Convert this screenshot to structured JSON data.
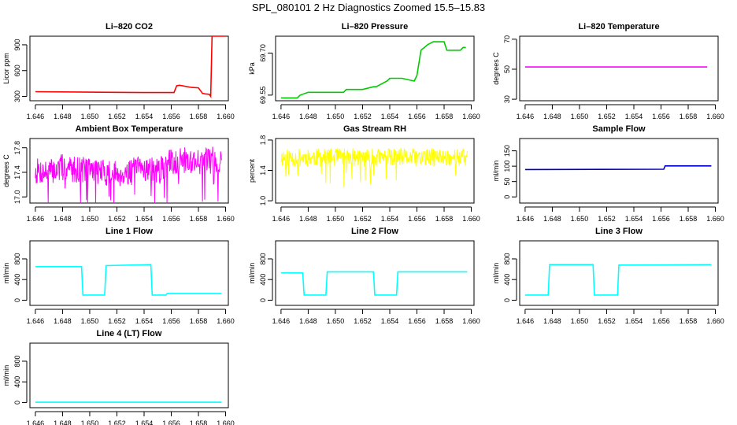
{
  "figure": {
    "title": "SPL_080101  2 Hz Diagnostics Zoomed 15.5–15.83"
  },
  "chart_data": [
    {
      "id": "co2",
      "type": "line",
      "title": "Li–820 CO2",
      "ylabel": "Licor ppm",
      "color": "#ff0000",
      "xlim": [
        1.6456,
        1.6602
      ],
      "ylim": [
        250,
        1000
      ],
      "xticks": [
        "1.646",
        "1.648",
        "1.650",
        "1.652",
        "1.654",
        "1.656",
        "1.658",
        "1.660"
      ],
      "yticks": [
        "300",
        "600",
        "900"
      ],
      "ytick_values": [
        300,
        600,
        900
      ],
      "x": [
        1.646,
        1.65,
        1.654,
        1.6562,
        1.6564,
        1.6566,
        1.6575,
        1.658,
        1.6583,
        1.6585,
        1.6588,
        1.6589,
        1.659,
        1.6591,
        1.66
      ],
      "values": [
        355,
        350,
        345,
        345,
        425,
        430,
        405,
        400,
        335,
        330,
        325,
        300,
        1000,
        1000,
        1000
      ]
    },
    {
      "id": "pressure",
      "type": "line",
      "title": "Li–820 Pressure",
      "ylabel": "kPa",
      "color": "#00cc00",
      "xlim": [
        1.6456,
        1.6602
      ],
      "ylim": [
        69.53,
        69.76
      ],
      "xticks": [
        "1.646",
        "1.648",
        "1.650",
        "1.652",
        "1.654",
        "1.656",
        "1.658",
        "1.660"
      ],
      "yticks": [
        "69.55",
        "69.70"
      ],
      "ytick_values": [
        69.55,
        69.7
      ],
      "x": [
        1.646,
        1.6472,
        1.6474,
        1.648,
        1.6485,
        1.6506,
        1.6508,
        1.652,
        1.6528,
        1.653,
        1.6538,
        1.654,
        1.6549,
        1.6558,
        1.656,
        1.6563,
        1.6568,
        1.6572,
        1.658,
        1.6582,
        1.6592,
        1.6594,
        1.6596
      ],
      "values": [
        69.54,
        69.54,
        69.55,
        69.56,
        69.56,
        69.56,
        69.57,
        69.57,
        69.58,
        69.58,
        69.6,
        69.61,
        69.61,
        69.6,
        69.62,
        69.71,
        69.73,
        69.74,
        69.74,
        69.71,
        69.71,
        69.72,
        69.72
      ]
    },
    {
      "id": "temperature",
      "type": "line",
      "title": "Li–820 Temperature",
      "ylabel": "degrees C",
      "color": "#ff00ff",
      "xlim": [
        1.6456,
        1.6602
      ],
      "ylim": [
        29,
        72
      ],
      "xticks": [
        "1.646",
        "1.648",
        "1.650",
        "1.652",
        "1.654",
        "1.656",
        "1.658",
        "1.660"
      ],
      "yticks": [
        "30",
        "50",
        "70"
      ],
      "ytick_values": [
        30,
        50,
        70
      ],
      "x": [
        1.646,
        1.6594
      ],
      "values": [
        51.5,
        51.5
      ]
    },
    {
      "id": "ambient",
      "type": "line",
      "title": "Ambient Box Temperature",
      "ylabel": "degrees C",
      "color": "#ff00ff",
      "noise": {
        "amp": 0.22,
        "seed": 7
      },
      "xlim": [
        1.6456,
        1.6602
      ],
      "ylim": [
        16.9,
        17.95
      ],
      "xticks": [
        "1.646",
        "1.648",
        "1.650",
        "1.652",
        "1.654",
        "1.656",
        "1.658",
        "1.660"
      ],
      "yticks": [
        "17.0",
        "17.4",
        "17.8"
      ],
      "ytick_values": [
        17.0,
        17.4,
        17.8
      ],
      "x": [
        1.646,
        1.647,
        1.648,
        1.649,
        1.65,
        1.651,
        1.652,
        1.653,
        1.654,
        1.655,
        1.656,
        1.657,
        1.658,
        1.659,
        1.6597
      ],
      "values": [
        17.42,
        17.4,
        17.48,
        17.45,
        17.46,
        17.4,
        17.38,
        17.4,
        17.48,
        17.4,
        17.58,
        17.6,
        17.58,
        17.6,
        17.58
      ]
    },
    {
      "id": "rh",
      "type": "line",
      "title": "Gas Stream RH",
      "ylabel": "percent",
      "color": "#ffff00",
      "noise": {
        "amp": 0.12,
        "seed": 11
      },
      "xlim": [
        1.6456,
        1.6602
      ],
      "ylim": [
        0.97,
        1.82
      ],
      "xticks": [
        "1.646",
        "1.648",
        "1.650",
        "1.652",
        "1.654",
        "1.656",
        "1.658",
        "1.660"
      ],
      "yticks": [
        "1.0",
        "1.4",
        "1.8"
      ],
      "ytick_values": [
        1.0,
        1.4,
        1.8
      ],
      "x": [
        1.646,
        1.6597
      ],
      "values": [
        1.57,
        1.57
      ]
    },
    {
      "id": "sample_flow",
      "type": "line",
      "title": "Sample Flow",
      "ylabel": "ml/min",
      "color": "#0000cc",
      "xlim": [
        1.6456,
        1.6602
      ],
      "ylim": [
        -20,
        190
      ],
      "xticks": [
        "1.646",
        "1.648",
        "1.650",
        "1.652",
        "1.654",
        "1.656",
        "1.658",
        "1.660"
      ],
      "yticks": [
        "0",
        "50",
        "100",
        "150"
      ],
      "ytick_values": [
        0,
        50,
        100,
        150
      ],
      "x": [
        1.646,
        1.6562,
        1.6563,
        1.6597
      ],
      "values": [
        89,
        90,
        101,
        101
      ]
    },
    {
      "id": "line1",
      "type": "line",
      "title": "Line 1 Flow",
      "ylabel": "ml/min",
      "color": "#00ffff",
      "xlim": [
        1.6456,
        1.6602
      ],
      "ylim": [
        -100,
        1150
      ],
      "xticks": [
        "1.646",
        "1.648",
        "1.650",
        "1.652",
        "1.654",
        "1.656",
        "1.658",
        "1.660"
      ],
      "yticks": [
        "0",
        "400",
        "800"
      ],
      "ytick_values": [
        0,
        400,
        800
      ],
      "x": [
        1.646,
        1.6494,
        1.6495,
        1.6511,
        1.6512,
        1.6545,
        1.6546,
        1.6556,
        1.6557,
        1.6597
      ],
      "values": [
        650,
        650,
        100,
        100,
        670,
        690,
        100,
        100,
        130,
        130
      ]
    },
    {
      "id": "line2",
      "type": "line",
      "title": "Line 2 Flow",
      "ylabel": "ml/min",
      "color": "#00ffff",
      "xlim": [
        1.6456,
        1.6602
      ],
      "ylim": [
        -100,
        1150
      ],
      "xticks": [
        "1.646",
        "1.648",
        "1.650",
        "1.652",
        "1.654",
        "1.656",
        "1.658",
        "1.660"
      ],
      "yticks": [
        "0",
        "400",
        "800"
      ],
      "ytick_values": [
        0,
        400,
        800
      ],
      "x": [
        1.646,
        1.6476,
        1.6477,
        1.6493,
        1.6494,
        1.6528,
        1.6529,
        1.6545,
        1.6546,
        1.6597
      ],
      "values": [
        530,
        530,
        100,
        100,
        550,
        550,
        100,
        100,
        550,
        550
      ]
    },
    {
      "id": "line3",
      "type": "line",
      "title": "Line 3 Flow",
      "ylabel": "ml/min",
      "color": "#00ffff",
      "xlim": [
        1.6456,
        1.6602
      ],
      "ylim": [
        -100,
        1150
      ],
      "xticks": [
        "1.646",
        "1.648",
        "1.650",
        "1.652",
        "1.654",
        "1.656",
        "1.658",
        "1.660"
      ],
      "yticks": [
        "0",
        "400",
        "800"
      ],
      "ytick_values": [
        0,
        400,
        800
      ],
      "x": [
        1.646,
        1.6477,
        1.6478,
        1.651,
        1.6511,
        1.6528,
        1.6529,
        1.6597
      ],
      "values": [
        100,
        100,
        690,
        690,
        100,
        100,
        680,
        690
      ]
    },
    {
      "id": "line4",
      "type": "line",
      "title": "Line 4 (LT) Flow",
      "ylabel": "ml/min",
      "color": "#00ffff",
      "xlim": [
        1.6456,
        1.6602
      ],
      "ylim": [
        -100,
        1150
      ],
      "xticks": [
        "1.646",
        "1.648",
        "1.650",
        "1.652",
        "1.654",
        "1.656",
        "1.658",
        "1.660"
      ],
      "yticks": [
        "0",
        "400",
        "800"
      ],
      "ytick_values": [
        0,
        400,
        800
      ],
      "x": [
        1.646,
        1.6597
      ],
      "values": [
        5,
        5
      ]
    }
  ]
}
